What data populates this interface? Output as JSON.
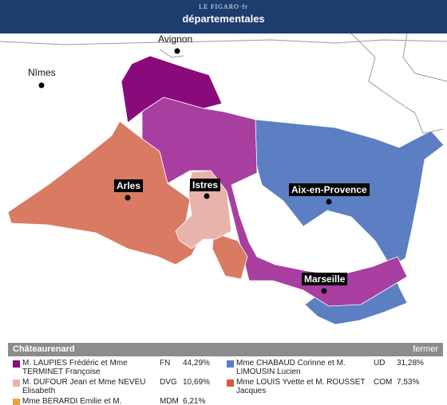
{
  "header": {
    "logo_top": "LE FIGARO·fr",
    "logo_main": "départementales"
  },
  "map": {
    "cities": [
      "Avignon",
      "Nîmes",
      "Arles",
      "Istres",
      "Aix-en-Provence",
      "Marseille"
    ]
  },
  "panel": {
    "title": "Châteaurenard",
    "close": "fermer",
    "results": [
      {
        "candidates": "M. LAUPIES Frédéric et Mme TERMINET Françoise",
        "party": "FN",
        "score": "44,29%",
        "color": "#8a0a7c"
      },
      {
        "candidates": "Mme CHABAUD Corinne et M. LIMOUSIN Lucien",
        "party": "UD",
        "score": "31,28%",
        "color": "#5b7fc2"
      },
      {
        "candidates": "M. DUFOUR Jean et Mme NEVEU Elisabeth",
        "party": "DVG",
        "score": "10,69%",
        "color": "#e8b3ab"
      },
      {
        "candidates": "Mme LOUIS Yvette et M. ROUSSET Jacques",
        "party": "COM",
        "score": "7,53%",
        "color": "#d65a3c"
      },
      {
        "candidates": "Mme BERARDI Emilie et M.",
        "party": "MDM",
        "score": "6,21%",
        "color": "#e8a23e"
      }
    ]
  }
}
